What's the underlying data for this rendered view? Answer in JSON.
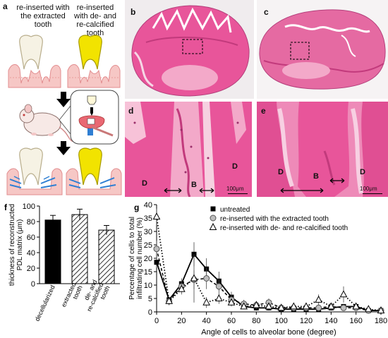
{
  "panel_a": {
    "letter": "a",
    "label_left": "re-inserted with the extracted tooth",
    "label_right": "re-inserted with de- and re-calcified tooth"
  },
  "histology": {
    "b": {
      "letter": "b"
    },
    "c": {
      "letter": "c"
    },
    "d": {
      "letter": "d",
      "labels": [
        "D",
        "B",
        "D"
      ],
      "scale": "100μm"
    },
    "e": {
      "letter": "e",
      "labels": [
        "D",
        "B",
        "D"
      ],
      "scale": "100μm"
    }
  },
  "colors": {
    "tissue_pink": "#e8559a",
    "tissue_light": "#f3a9c9",
    "bone_dark": "#c23a7c",
    "tooth_white": "#f6f2e4",
    "tooth_yellow": "#f2e300",
    "bar_black": "#000000"
  },
  "chart_data": [
    {
      "panel": "f",
      "type": "bar",
      "ylabel": "thickness of reconstructed PDL matrix (μm)",
      "categories": [
        "decellularized",
        "extracted tooth",
        "de- and re-calcified tooth"
      ],
      "values": [
        82,
        89,
        69
      ],
      "errors": [
        6,
        7,
        6
      ],
      "fills": [
        "solid",
        "hatch",
        "hatch"
      ],
      "ylim": [
        0,
        100
      ],
      "yticks": [
        0,
        20,
        40,
        60,
        80,
        100
      ]
    },
    {
      "panel": "g",
      "type": "line",
      "xlabel": "Angle of cells to alveolar bone (degree)",
      "ylabel": "Percentage of cells to total infiltrating cell number (%)",
      "xlim": [
        0,
        180
      ],
      "ylim": [
        0,
        40
      ],
      "xticks": [
        0,
        20,
        40,
        60,
        80,
        100,
        120,
        140,
        160,
        180
      ],
      "yticks": [
        0,
        5,
        10,
        15,
        20,
        25,
        30,
        35,
        40
      ],
      "legend_position": "top-right",
      "series": [
        {
          "name": "untreated",
          "marker": "square",
          "line": "solid",
          "x": [
            0,
            10,
            20,
            30,
            40,
            50,
            60,
            70,
            80,
            90,
            100,
            110,
            120,
            130,
            140,
            150,
            160,
            170,
            180
          ],
          "y": [
            18.5,
            4.5,
            10.5,
            21.5,
            16.0,
            11.5,
            5.5,
            2.0,
            1.5,
            1.5,
            1.0,
            1.0,
            1.0,
            1.0,
            1.5,
            2.0,
            2.0,
            0.5,
            0.5
          ],
          "err": [
            2,
            1,
            2,
            4.5,
            4,
            3.5,
            2,
            1,
            1,
            1,
            1,
            1,
            1,
            1,
            1,
            1,
            1,
            0.5,
            0.5
          ]
        },
        {
          "name": "re-inserted with the extracted tooth",
          "marker": "circle",
          "line": "dashed",
          "x": [
            0,
            10,
            20,
            30,
            40,
            50,
            60,
            70,
            80,
            90,
            100,
            110,
            120,
            130,
            140,
            150,
            160,
            170,
            180
          ],
          "y": [
            23.5,
            4.0,
            9.5,
            12.0,
            12.5,
            9.5,
            4.5,
            3.0,
            2.5,
            3.5,
            1.5,
            1.5,
            1.5,
            1.5,
            2.0,
            1.5,
            1.5,
            0.5,
            0.5
          ],
          "err": [
            3,
            1.5,
            2,
            3.5,
            4,
            2.5,
            2,
            1.5,
            1.5,
            1.5,
            1,
            1,
            1,
            1,
            1,
            1,
            1,
            0.5,
            0.5
          ]
        },
        {
          "name": "re-inserted with de- and re-calcified tooth",
          "marker": "triangle",
          "line": "dotted",
          "x": [
            0,
            10,
            20,
            30,
            40,
            50,
            60,
            70,
            80,
            90,
            100,
            110,
            120,
            130,
            140,
            150,
            160,
            170,
            180
          ],
          "y": [
            35.5,
            4.0,
            8.5,
            12.5,
            3.5,
            5.0,
            3.5,
            2.0,
            2.5,
            2.0,
            1.5,
            2.0,
            2.0,
            4.5,
            2.0,
            6.5,
            2.0,
            1.0,
            0.5
          ],
          "err": [
            3,
            1.5,
            2,
            9,
            2,
            2,
            1.5,
            1,
            1,
            1,
            1,
            1,
            1,
            2,
            1,
            3,
            1,
            0.5,
            0.5
          ]
        }
      ]
    }
  ]
}
